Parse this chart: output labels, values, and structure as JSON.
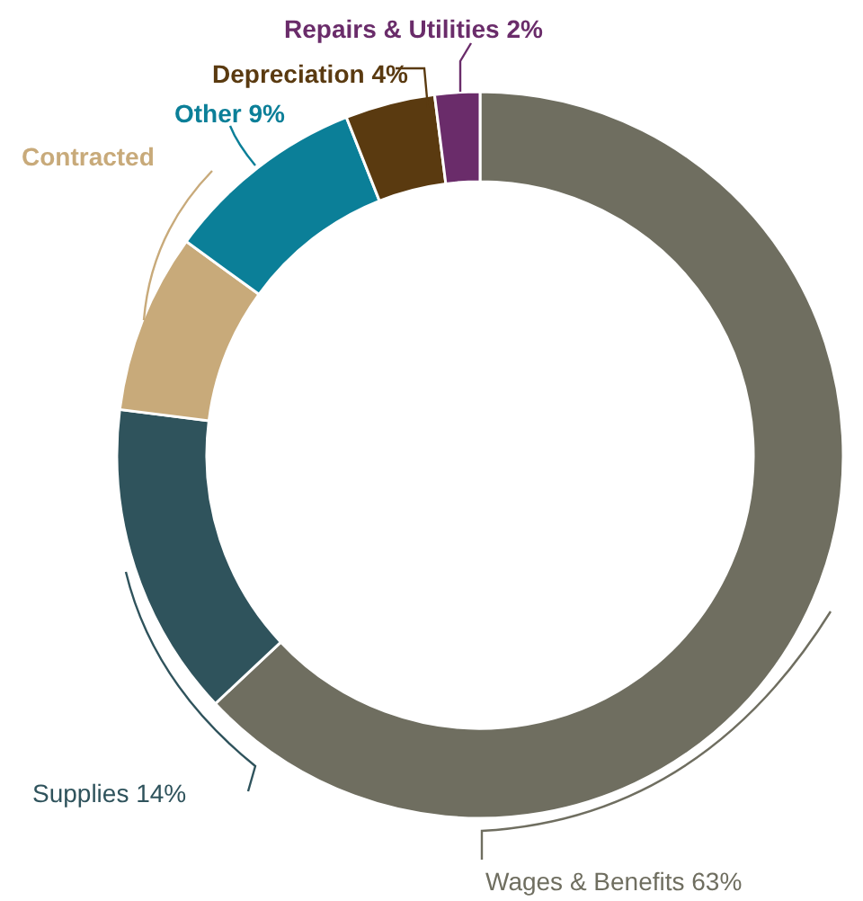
{
  "chart_data": {
    "type": "donut",
    "categories": [
      "Wages & Benefits",
      "Supplies",
      "Contracted",
      "Other",
      "Depreciation",
      "Repairs & Utilities"
    ],
    "values": [
      63,
      14,
      8,
      9,
      4,
      2
    ],
    "value_labels": [
      "63%",
      "14%",
      null,
      "9%",
      "4%",
      "2%"
    ],
    "colors": [
      "#6f6e60",
      "#2f535c",
      "#c8aa7a",
      "#0b7f98",
      "#5a3a10",
      "#6a2c6a"
    ],
    "legend": false
  }
}
